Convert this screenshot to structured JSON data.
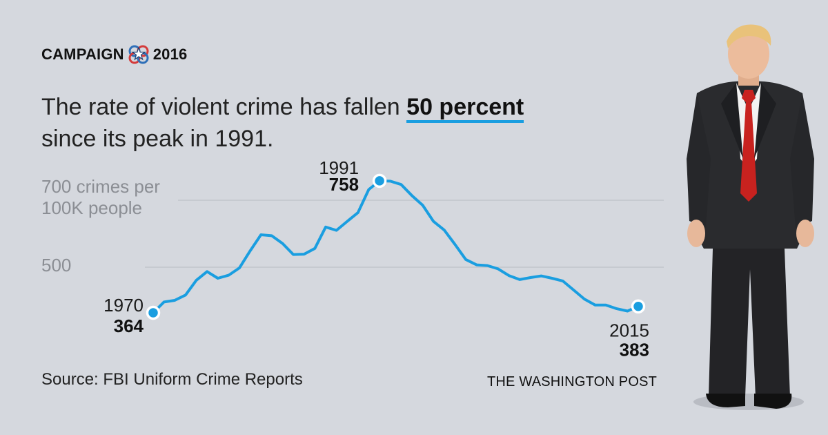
{
  "brand": {
    "left": "CAMPAIGN",
    "right": "2016"
  },
  "headline": {
    "pre": "The rate of violent crime has fallen ",
    "highlight": "50 percent",
    "post": "since its peak in 1991."
  },
  "chart_data": {
    "type": "line",
    "x_range": [
      1970,
      2015
    ],
    "ylim": [
      250,
      800
    ],
    "gridlines": [
      500,
      700
    ],
    "y_tick_labels": {
      "700_line1": "700 crimes per",
      "700_line2": "100K people",
      "500": "500"
    },
    "color": "#1a9ee0",
    "x": [
      1970,
      1971,
      1972,
      1973,
      1974,
      1975,
      1976,
      1977,
      1978,
      1979,
      1980,
      1981,
      1982,
      1983,
      1984,
      1985,
      1986,
      1987,
      1988,
      1989,
      1990,
      1991,
      1992,
      1993,
      1994,
      1995,
      1996,
      1997,
      1998,
      1999,
      2000,
      2001,
      2002,
      2003,
      2004,
      2005,
      2006,
      2007,
      2008,
      2009,
      2010,
      2011,
      2012,
      2013,
      2014,
      2015
    ],
    "y": [
      364,
      396,
      401,
      417,
      461,
      487,
      467,
      476,
      498,
      549,
      597,
      594,
      571,
      538,
      539,
      556,
      620,
      610,
      637,
      663,
      732,
      758,
      757,
      747,
      714,
      685,
      637,
      611,
      568,
      523,
      507,
      505,
      495,
      475,
      463,
      469,
      474,
      467,
      459,
      432,
      405,
      387,
      387,
      376,
      369,
      383
    ],
    "annotations": [
      {
        "year": "1970",
        "value": "364"
      },
      {
        "year": "1991",
        "value": "758"
      },
      {
        "year": "2015",
        "value": "383"
      }
    ]
  },
  "footer": {
    "source": "Source: FBI Uniform Crime Reports",
    "credit": "THE WASHINGTON POST"
  }
}
